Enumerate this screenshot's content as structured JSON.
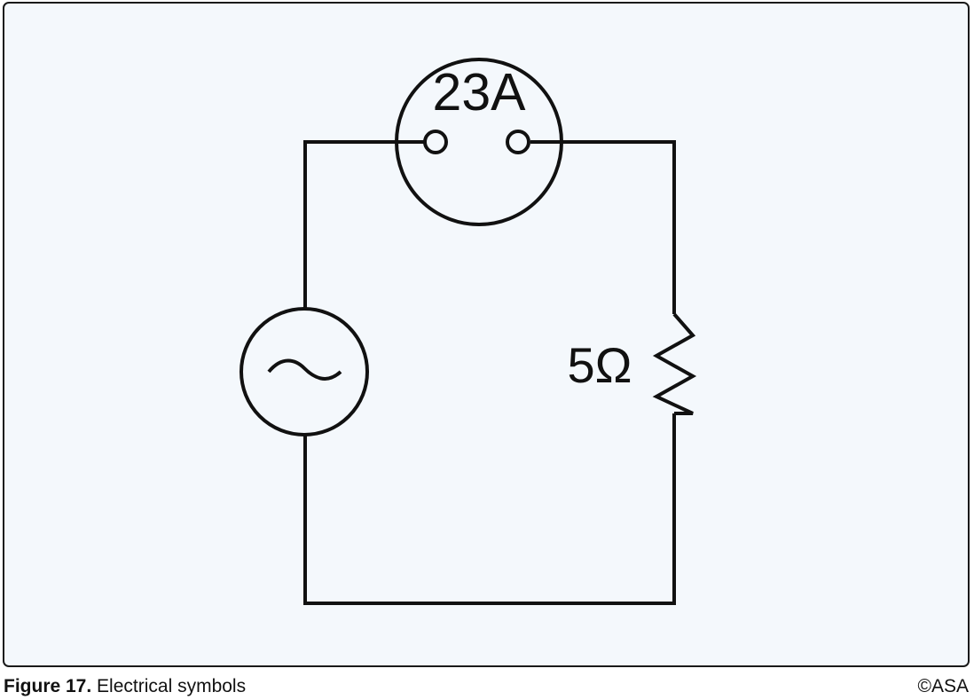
{
  "figure": {
    "number_label": "Figure 17.",
    "title": "Electrical symbols",
    "copyright": "©ASA"
  },
  "diagram": {
    "ammeter": {
      "reading": "23A",
      "icon": "ammeter-icon"
    },
    "ac_source": {
      "symbol": "~",
      "icon": "ac-source-icon"
    },
    "resistor": {
      "value": "5Ω",
      "icon": "resistor-zigzag-icon"
    },
    "colors": {
      "panel_background": "#f4f8fc",
      "line": "#111111",
      "border": "#1a1a1a"
    }
  }
}
